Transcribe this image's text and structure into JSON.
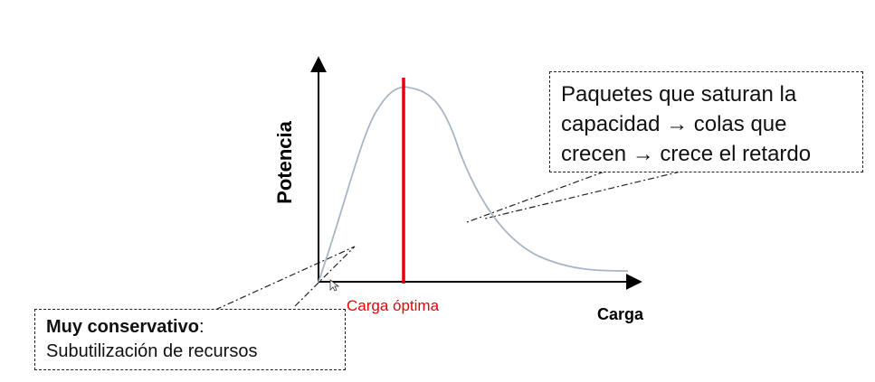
{
  "diagram": {
    "y_axis_label": "Potencia",
    "x_axis_label": "Carga",
    "optimal_label": "Carga óptima",
    "optimal_color": "#e8000b",
    "curve_color": "#a9b6c6",
    "cursor_icon": "mouse-pointer-icon"
  },
  "callout_right": {
    "line1": "Paquetes que saturan la",
    "line2": "capacidad  → colas que",
    "line3": "crecen → crece el retardo"
  },
  "callout_left": {
    "title": "Muy conservativo",
    "colon": ":",
    "line2": "Subutilización de recursos"
  }
}
